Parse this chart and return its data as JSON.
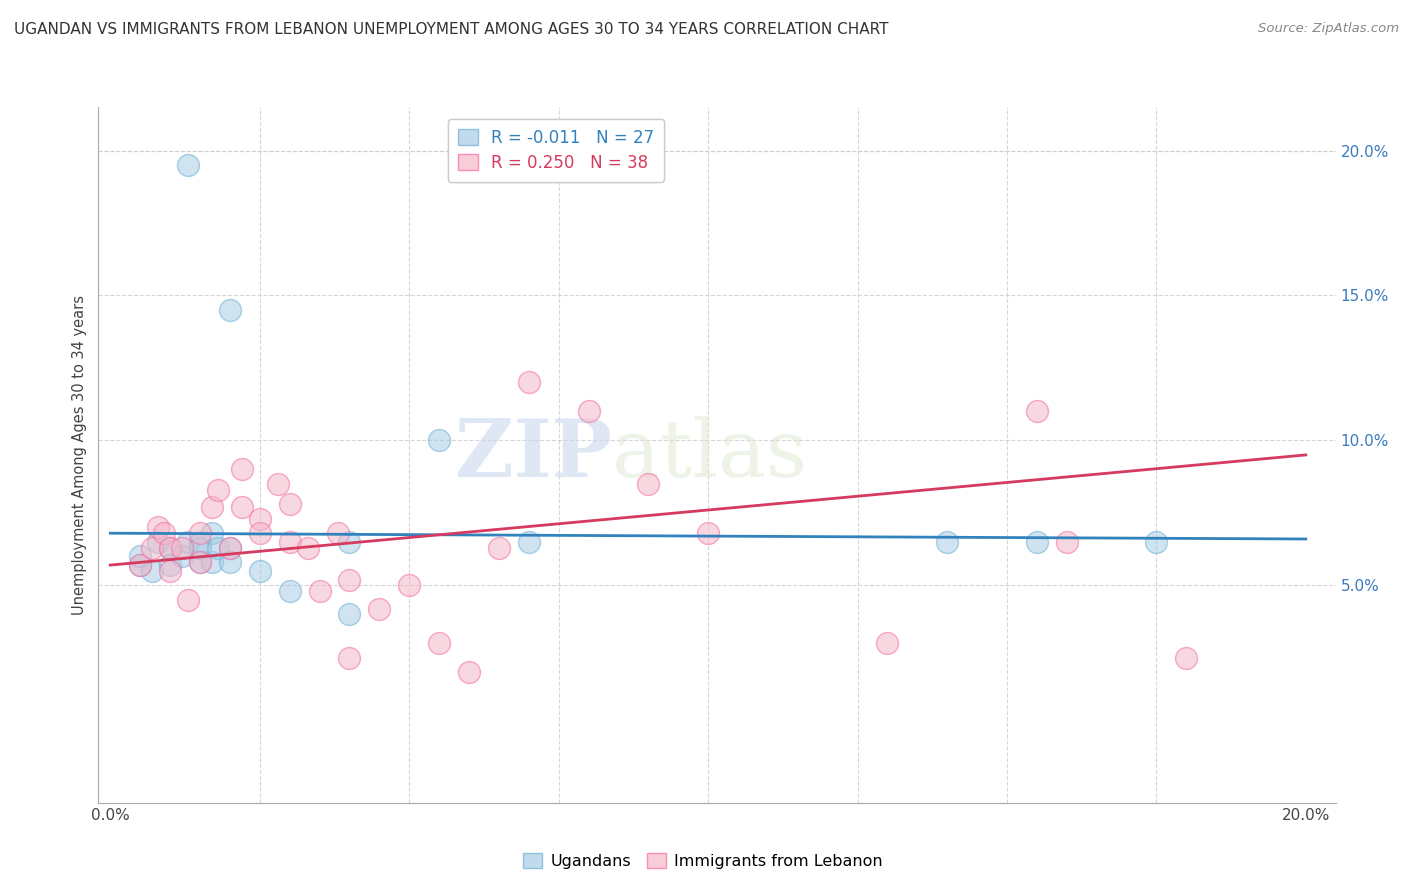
{
  "title": "UGANDAN VS IMMIGRANTS FROM LEBANON UNEMPLOYMENT AMONG AGES 30 TO 34 YEARS CORRELATION CHART",
  "source": "Source: ZipAtlas.com",
  "ylabel": "Unemployment Among Ages 30 to 34 years",
  "xlim": [
    -0.002,
    0.205
  ],
  "ylim": [
    -0.025,
    0.215
  ],
  "xticks": [
    0.0,
    0.025,
    0.05,
    0.075,
    0.1,
    0.125,
    0.15,
    0.175,
    0.2
  ],
  "xtick_labels": [
    "0.0%",
    "",
    "",
    "",
    "",
    "",
    "",
    "",
    "20.0%"
  ],
  "yticks": [
    0.05,
    0.1,
    0.15,
    0.2
  ],
  "ytick_labels": [
    "5.0%",
    "10.0%",
    "15.0%",
    "20.0%"
  ],
  "blue_color": "#a8cce4",
  "pink_color": "#f4b8c8",
  "blue_edge_color": "#6baed6",
  "pink_edge_color": "#f768a1",
  "blue_line_color": "#3182bd",
  "pink_line_color": "#d63a5e",
  "legend_label_blue": "Ugandans",
  "legend_label_pink": "Immigrants from Lebanon",
  "watermark_zip": "ZIP",
  "watermark_atlas": "atlas",
  "blue_scatter_x": [
    0.013,
    0.02,
    0.005,
    0.007,
    0.005,
    0.008,
    0.01,
    0.01,
    0.012,
    0.013,
    0.015,
    0.015,
    0.015,
    0.017,
    0.017,
    0.018,
    0.02,
    0.02,
    0.025,
    0.03,
    0.04,
    0.04,
    0.055,
    0.07,
    0.14,
    0.155,
    0.175
  ],
  "blue_scatter_y": [
    0.195,
    0.145,
    0.057,
    0.055,
    0.06,
    0.065,
    0.063,
    0.057,
    0.06,
    0.065,
    0.065,
    0.058,
    0.063,
    0.068,
    0.058,
    0.063,
    0.063,
    0.058,
    0.055,
    0.048,
    0.04,
    0.065,
    0.1,
    0.065,
    0.065,
    0.065,
    0.065
  ],
  "pink_scatter_x": [
    0.005,
    0.007,
    0.008,
    0.009,
    0.01,
    0.01,
    0.012,
    0.013,
    0.015,
    0.015,
    0.017,
    0.018,
    0.02,
    0.022,
    0.022,
    0.025,
    0.025,
    0.028,
    0.03,
    0.03,
    0.033,
    0.035,
    0.038,
    0.04,
    0.04,
    0.045,
    0.05,
    0.055,
    0.06,
    0.065,
    0.07,
    0.08,
    0.09,
    0.1,
    0.13,
    0.155,
    0.16,
    0.18
  ],
  "pink_scatter_y": [
    0.057,
    0.063,
    0.07,
    0.068,
    0.063,
    0.055,
    0.063,
    0.045,
    0.058,
    0.068,
    0.077,
    0.083,
    0.063,
    0.09,
    0.077,
    0.073,
    0.068,
    0.085,
    0.065,
    0.078,
    0.063,
    0.048,
    0.068,
    0.052,
    0.025,
    0.042,
    0.05,
    0.03,
    0.02,
    0.063,
    0.12,
    0.11,
    0.085,
    0.068,
    0.03,
    0.11,
    0.065,
    0.025
  ],
  "blue_line_x": [
    0.0,
    0.2
  ],
  "blue_line_y": [
    0.068,
    0.066
  ],
  "pink_line_x": [
    0.0,
    0.2
  ],
  "pink_line_y": [
    0.057,
    0.095
  ],
  "background_color": "#ffffff",
  "grid_color": "#cccccc",
  "plot_border_color": "#bbbbbb"
}
